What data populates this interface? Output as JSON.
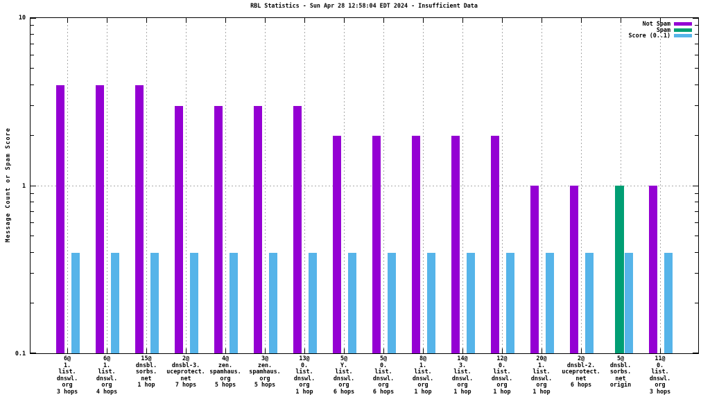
{
  "title": "RBL Statistics - Sun Apr 28 12:58:04 EDT 2024 - Insufficient Data",
  "y_axis_label": "Message Count or Spam Score",
  "legend": [
    {
      "label": "Not Spam",
      "color": "#9400d3"
    },
    {
      "label": "Spam",
      "color": "#009e73"
    },
    {
      "label": "Score (0..1)",
      "color": "#56b4e9"
    }
  ],
  "colors": {
    "not_spam": "#9400d3",
    "spam": "#009e73",
    "score": "#56b4e9",
    "grid": "#a8a8a8",
    "border": "#000000",
    "background": "#ffffff"
  },
  "chart_data": {
    "type": "bar",
    "y_scale": "log",
    "ylim": [
      0.1,
      10
    ],
    "grid": "dashed vertical line at each category tick; dashed horizontal line at y=1",
    "legend_position": "top-right-inside",
    "y_ticks": [
      {
        "value": 10,
        "label": "10"
      },
      {
        "value": 1,
        "label": "1"
      },
      {
        "value": 0.1,
        "label": "0.1"
      }
    ],
    "y_minor_ticks": [
      0.2,
      0.3,
      0.4,
      0.5,
      0.6,
      0.7,
      0.8,
      0.9,
      2,
      3,
      4,
      5,
      6,
      7,
      8,
      9
    ],
    "series_names": [
      "Not Spam",
      "Spam",
      "Score (0..1)"
    ],
    "groups": [
      {
        "label_lines": [
          "6@",
          "1.",
          "list.",
          "dnswl.",
          "org",
          "3 hops"
        ],
        "not_spam": 4,
        "spam": 0,
        "score": 0.4
      },
      {
        "label_lines": [
          "6@",
          "1.",
          "list.",
          "dnswl.",
          "org",
          "4 hops"
        ],
        "not_spam": 4,
        "spam": 0,
        "score": 0.4
      },
      {
        "label_lines": [
          "15@",
          "dnsbl.",
          "sorbs.",
          "net",
          "1 hop"
        ],
        "not_spam": 4,
        "spam": 0,
        "score": 0.4
      },
      {
        "label_lines": [
          "2@",
          "dnsbl-3.",
          "uceprotect.",
          "net",
          "7 hops"
        ],
        "not_spam": 3,
        "spam": 0,
        "score": 0.4
      },
      {
        "label_lines": [
          "4@",
          "zen.",
          "spamhaus.",
          "org",
          "5 hops"
        ],
        "not_spam": 3,
        "spam": 0,
        "score": 0.4
      },
      {
        "label_lines": [
          "3@",
          "zen.",
          "spamhaus.",
          "org",
          "5 hops"
        ],
        "not_spam": 3,
        "spam": 0,
        "score": 0.4
      },
      {
        "label_lines": [
          "13@",
          "0.",
          "list.",
          "dnswl.",
          "org",
          "1 hop"
        ],
        "not_spam": 3,
        "spam": 0,
        "score": 0.4
      },
      {
        "label_lines": [
          "5@",
          "Y.",
          "list.",
          "dnswl.",
          "org",
          "6 hops"
        ],
        "not_spam": 2,
        "spam": 0,
        "score": 0.4
      },
      {
        "label_lines": [
          "5@",
          "0.",
          "list.",
          "dnswl.",
          "org",
          "6 hops"
        ],
        "not_spam": 2,
        "spam": 0,
        "score": 0.4
      },
      {
        "label_lines": [
          "8@",
          "1.",
          "list.",
          "dnswl.",
          "org",
          "1 hop"
        ],
        "not_spam": 2,
        "spam": 0,
        "score": 0.4
      },
      {
        "label_lines": [
          "14@",
          "3.",
          "list.",
          "dnswl.",
          "org",
          "1 hop"
        ],
        "not_spam": 2,
        "spam": 0,
        "score": 0.4
      },
      {
        "label_lines": [
          "12@",
          "0.",
          "list.",
          "dnswl.",
          "org",
          "1 hop"
        ],
        "not_spam": 2,
        "spam": 0,
        "score": 0.4
      },
      {
        "label_lines": [
          "20@",
          "1.",
          "list.",
          "dnswl.",
          "org",
          "1 hop"
        ],
        "not_spam": 1,
        "spam": 0,
        "score": 0.4
      },
      {
        "label_lines": [
          "2@",
          "dnsbl-2.",
          "uceprotect.",
          "net",
          "6 hops"
        ],
        "not_spam": 1,
        "spam": 0,
        "score": 0.4
      },
      {
        "label_lines": [
          "5@",
          "dnsbl.",
          "sorbs.",
          "net",
          "origin"
        ],
        "not_spam": 0,
        "spam": 1,
        "score": 0.4
      },
      {
        "label_lines": [
          "11@",
          "0.",
          "list.",
          "dnswl.",
          "org",
          "3 hops"
        ],
        "not_spam": 1,
        "spam": 0,
        "score": 0.4
      }
    ]
  }
}
